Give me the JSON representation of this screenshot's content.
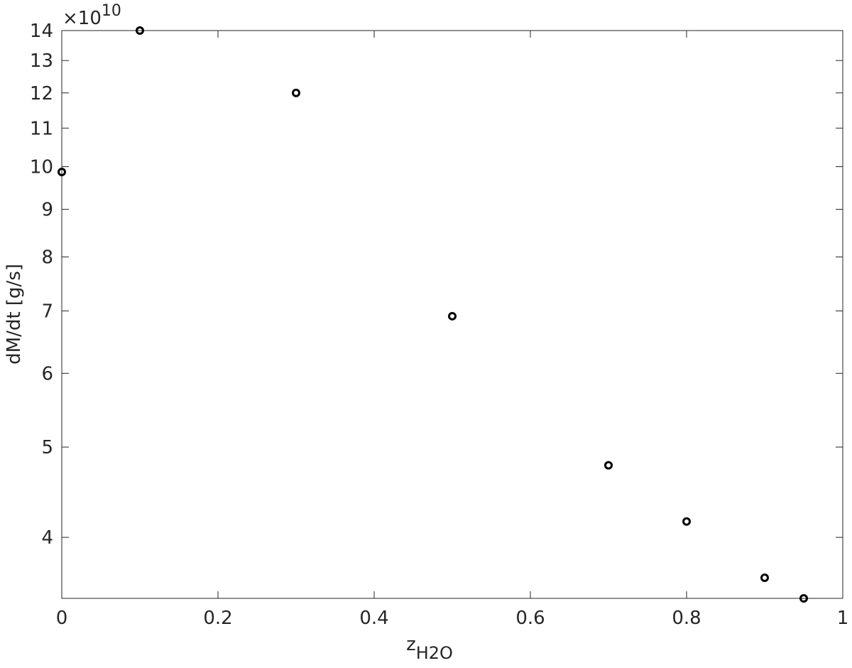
{
  "chart_data": {
    "type": "line",
    "x": [
      0,
      0.1,
      0.3,
      0.5,
      0.7,
      0.8,
      0.9,
      0.95
    ],
    "series": [
      {
        "color": "#000000",
        "values": [
          9.87,
          14.0,
          12.0,
          6.91,
          4.78,
          4.16,
          3.62,
          3.44
        ]
      }
    ],
    "xlabel": "z",
    "xlabel_sub": "H2O",
    "ylabel": "dM/dt [g/s]",
    "y_multiplier_base": "×10",
    "y_multiplier_exponent": "10",
    "xlim": [
      0,
      1
    ],
    "xticks": [
      0,
      0.2,
      0.4,
      0.6,
      0.8,
      1
    ],
    "ylim": [
      3.44,
      14
    ],
    "yticks": [
      4,
      5,
      6,
      7,
      8,
      9,
      10,
      11,
      12,
      13,
      14
    ],
    "ylog": true,
    "grid": false
  }
}
